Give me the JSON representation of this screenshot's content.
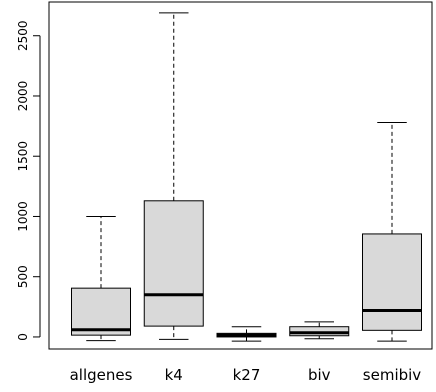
{
  "chart_data": {
    "type": "boxplot",
    "categories": [
      "allgenes",
      "k4",
      "k27",
      "biv",
      "semibiv"
    ],
    "boxes": [
      {
        "name": "allgenes",
        "whisker_low": -30,
        "q1": 15,
        "median": 60,
        "q3": 405,
        "whisker_high": 1000
      },
      {
        "name": "k4",
        "whisker_low": -20,
        "q1": 90,
        "median": 350,
        "q3": 1130,
        "whisker_high": 2690
      },
      {
        "name": "k27",
        "whisker_low": -35,
        "q1": 0,
        "median": 15,
        "q3": 30,
        "whisker_high": 85
      },
      {
        "name": "biv",
        "whisker_low": -15,
        "q1": 10,
        "median": 35,
        "q3": 85,
        "whisker_high": 125
      },
      {
        "name": "semibiv",
        "whisker_low": -35,
        "q1": 55,
        "median": 220,
        "q3": 855,
        "whisker_high": 1780
      }
    ],
    "y_ticks": [
      0,
      500,
      1000,
      1500,
      2000,
      2500
    ],
    "ylim": [
      -100,
      2780
    ],
    "box_fill": "#d9d9d9",
    "stroke": "#000000",
    "xlabel": "",
    "ylabel": "",
    "title": "",
    "grid": false
  }
}
